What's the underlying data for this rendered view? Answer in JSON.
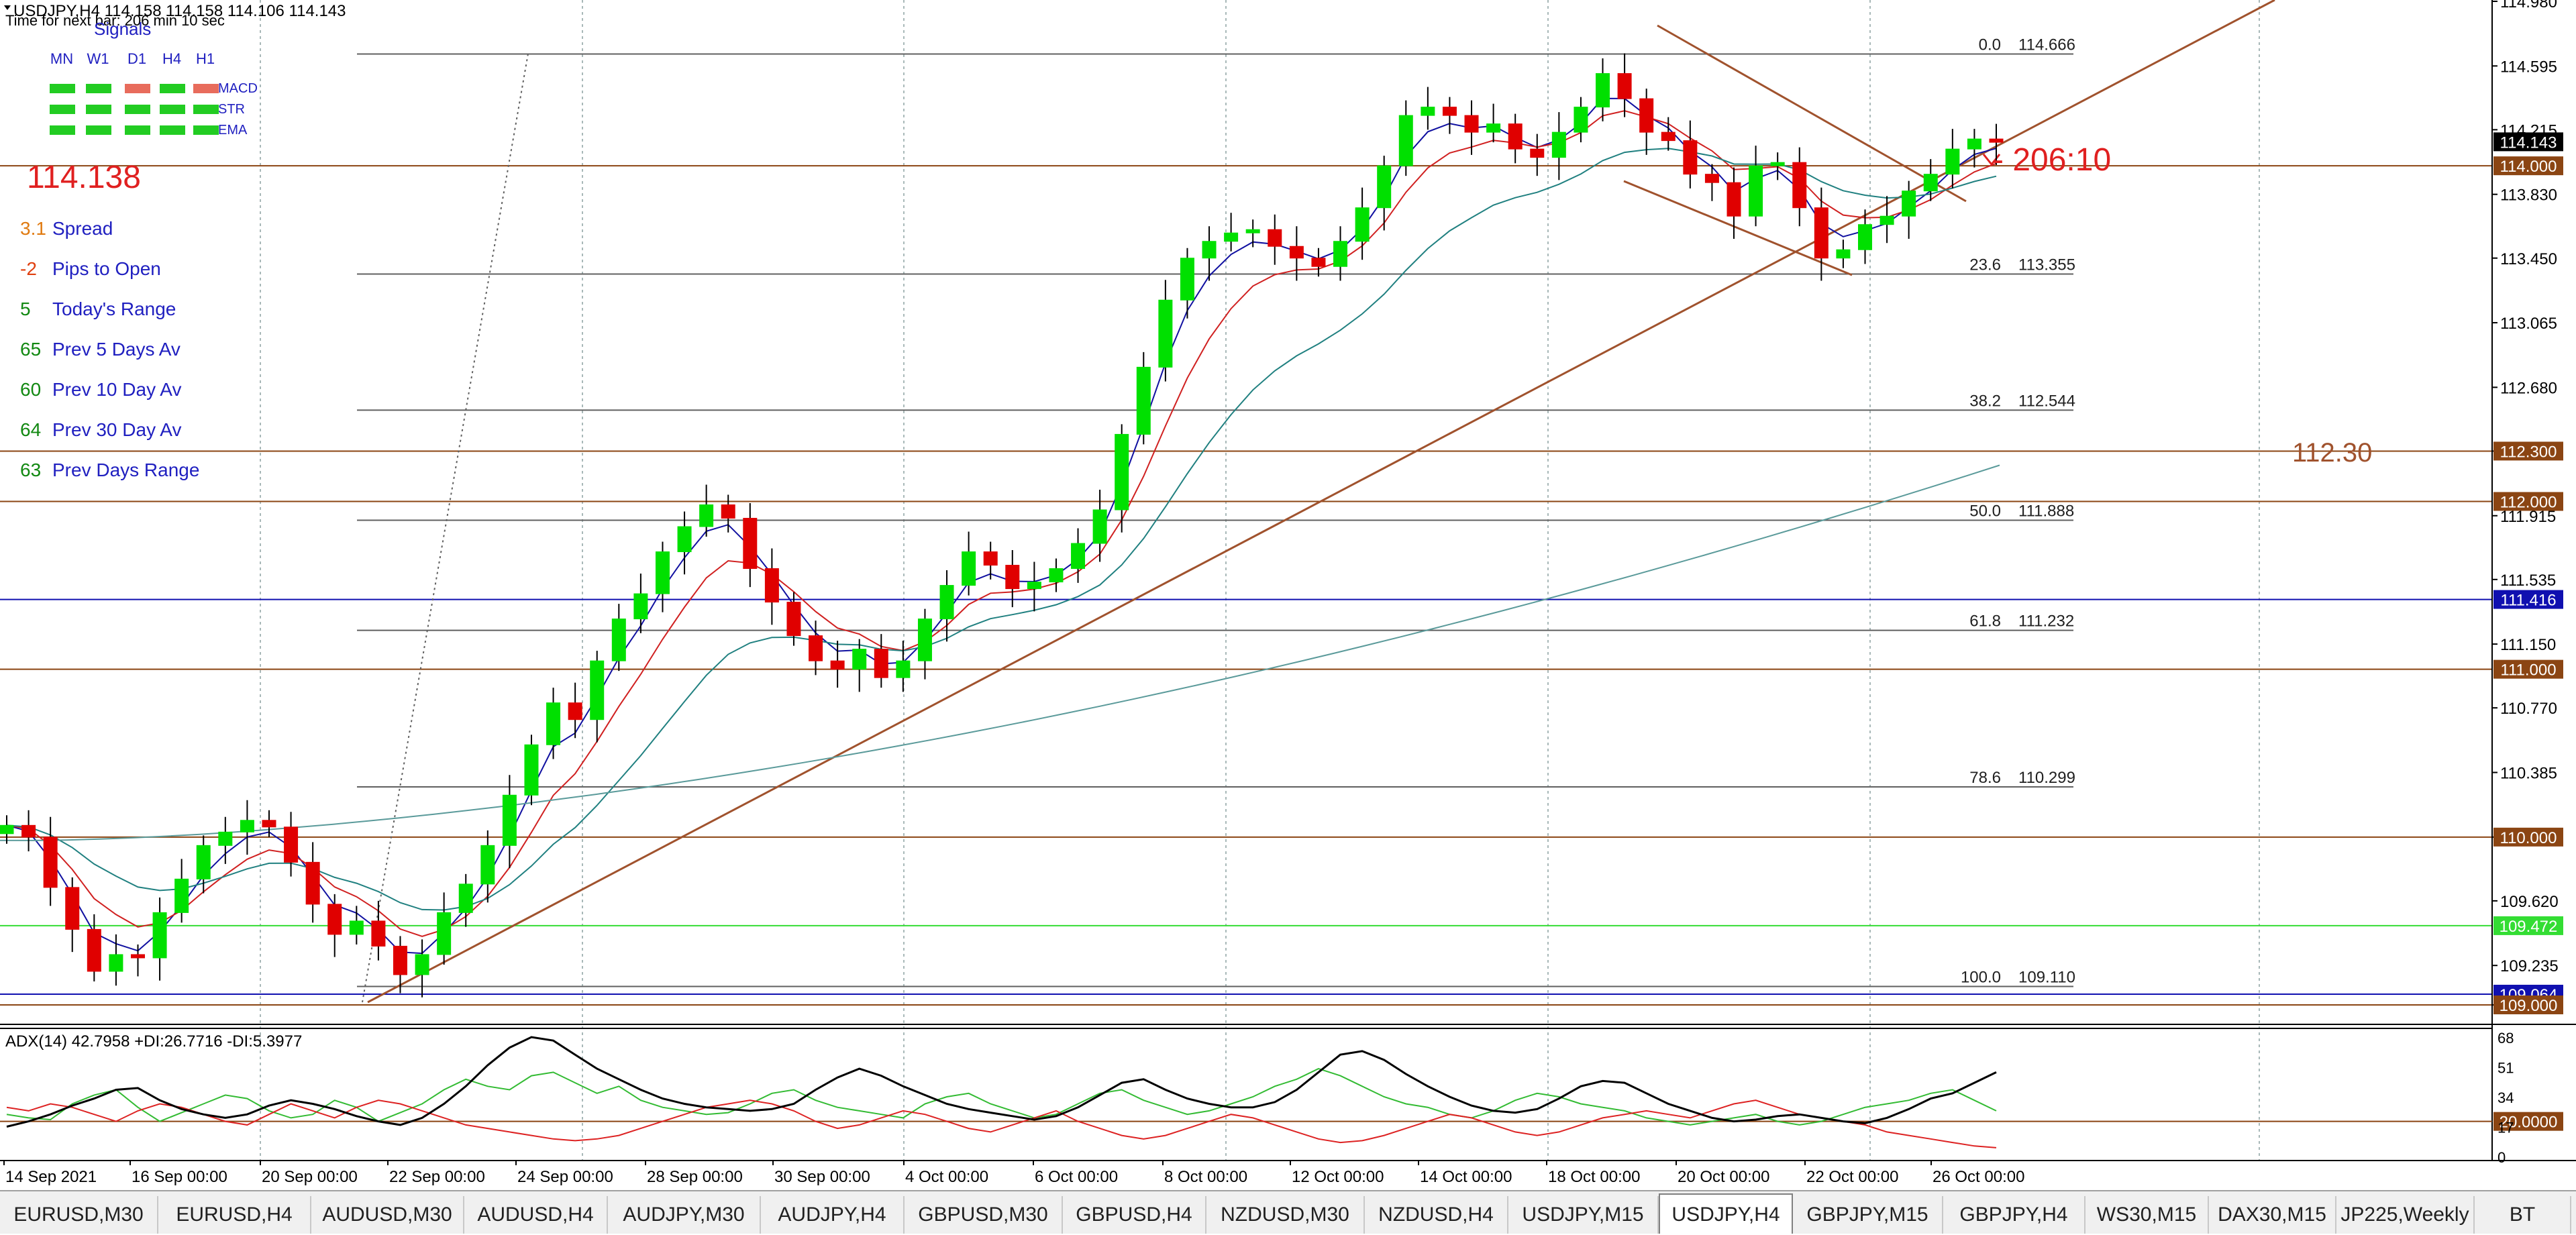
{
  "header": {
    "symbol_line": "USDJPY,H4  114.158 114.158 114.106 114.143",
    "timer": "Time for next bar: 206 min 10 sec"
  },
  "signals": {
    "title": "Signals",
    "timeframes": [
      "MN",
      "W1",
      "D1",
      "H4",
      "H1"
    ],
    "rows": [
      {
        "label": "MACD",
        "colors": [
          "#22cc22",
          "#22cc22",
          "#e86c5c",
          "#22cc22",
          "#e86c5c"
        ]
      },
      {
        "label": "STR",
        "colors": [
          "#22cc22",
          "#22cc22",
          "#22cc22",
          "#22cc22",
          "#22cc22"
        ]
      },
      {
        "label": "EMA",
        "colors": [
          "#22cc22",
          "#22cc22",
          "#22cc22",
          "#22cc22",
          "#22cc22"
        ]
      }
    ]
  },
  "big_price": "114.138",
  "stats": [
    {
      "value": "3.1",
      "label": "Spread",
      "value_color": "#e07a10"
    },
    {
      "value": "-2",
      "label": "Pips to Open",
      "value_color": "#e04010"
    },
    {
      "value": "5",
      "label": "Today's Range",
      "value_color": "#118811"
    },
    {
      "value": "65",
      "label": "Prev 5 Days Av",
      "value_color": "#118811"
    },
    {
      "value": "60",
      "label": "Prev 10 Day Av",
      "value_color": "#118811"
    },
    {
      "value": "64",
      "label": "Prev 30 Day Av",
      "value_color": "#118811"
    },
    {
      "value": "63",
      "label": "Prev Days Range",
      "value_color": "#118811"
    }
  ],
  "countdown_label": "- 206:10",
  "level_label": "112.30",
  "fib_levels": [
    {
      "ratio": "0.0",
      "price": 114.666,
      "price_text": "114.666"
    },
    {
      "ratio": "23.6",
      "price": 113.355,
      "price_text": "113.355"
    },
    {
      "ratio": "38.2",
      "price": 112.544,
      "price_text": "112.544"
    },
    {
      "ratio": "50.0",
      "price": 111.888,
      "price_text": "111.888"
    },
    {
      "ratio": "61.8",
      "price": 111.232,
      "price_text": "111.232"
    },
    {
      "ratio": "78.6",
      "price": 110.299,
      "price_text": "110.299"
    },
    {
      "ratio": "100.0",
      "price": 109.11,
      "price_text": "109.110"
    }
  ],
  "horizontal_lines": [
    {
      "price": 114.0,
      "label": "114.000",
      "color": "#8b4513"
    },
    {
      "price": 112.3,
      "label": "112.300",
      "color": "#8b4513"
    },
    {
      "price": 112.0,
      "label": "112.000",
      "color": "#8b4513"
    },
    {
      "price": 111.416,
      "label": "111.416",
      "color": "#1010b0"
    },
    {
      "price": 111.0,
      "label": "111.000",
      "color": "#8b4513"
    },
    {
      "price": 110.0,
      "label": "110.000",
      "color": "#8b4513"
    },
    {
      "price": 109.472,
      "label": "109.472",
      "color": "#33dd33"
    },
    {
      "price": 109.064,
      "label": "109.064",
      "color": "#1010b0"
    },
    {
      "price": 109.0,
      "label": "109.000",
      "color": "#8b4513"
    }
  ],
  "current_price_label": "114.143",
  "price_axis_ticks": [
    "114.980",
    "114.595",
    "114.215",
    "113.830",
    "113.450",
    "113.065",
    "112.680",
    "112.300",
    "111.915",
    "111.535",
    "111.150",
    "110.770",
    "110.385",
    "110.000",
    "109.620",
    "109.235",
    "109.000"
  ],
  "adx": {
    "label": "ADX(14) 42.7958 +DI:26.7716 -DI:5.3977",
    "axis_ticks": [
      "68",
      "51",
      "34",
      "17",
      "0"
    ],
    "level_label": "20.0000",
    "adx_values": [
      17,
      20,
      24,
      29,
      33,
      38,
      39,
      32,
      27,
      24,
      22,
      24,
      29,
      32,
      30,
      27,
      23,
      20,
      18,
      22,
      30,
      40,
      52,
      62,
      68,
      66,
      58,
      50,
      44,
      38,
      33,
      30,
      28,
      27,
      26,
      27,
      30,
      38,
      45,
      50,
      46,
      40,
      35,
      30,
      27,
      25,
      23,
      21,
      23,
      28,
      35,
      42,
      44,
      38,
      33,
      30,
      28,
      28,
      31,
      38,
      48,
      58,
      60,
      55,
      47,
      40,
      34,
      29,
      26,
      25,
      27,
      33,
      40,
      43,
      42,
      36,
      30,
      26,
      22,
      20,
      21,
      23,
      24,
      22,
      20,
      19,
      22,
      27,
      33,
      36,
      42,
      48
    ],
    "plus_di": [
      24,
      22,
      21,
      30,
      35,
      38,
      28,
      20,
      25,
      30,
      35,
      33,
      26,
      22,
      24,
      32,
      28,
      20,
      25,
      30,
      38,
      44,
      40,
      38,
      46,
      48,
      42,
      36,
      40,
      32,
      28,
      26,
      24,
      25,
      30,
      36,
      38,
      32,
      28,
      26,
      24,
      22,
      30,
      34,
      36,
      30,
      26,
      22,
      24,
      30,
      36,
      38,
      32,
      28,
      24,
      26,
      30,
      34,
      40,
      44,
      50,
      46,
      40,
      34,
      30,
      28,
      24,
      22,
      26,
      32,
      36,
      34,
      30,
      28,
      26,
      22,
      20,
      18,
      20,
      22,
      24,
      20,
      18,
      20,
      24,
      28,
      30,
      32,
      36,
      38,
      32,
      26
    ],
    "minus_di": [
      28,
      26,
      30,
      28,
      24,
      20,
      26,
      30,
      28,
      24,
      20,
      18,
      24,
      30,
      26,
      22,
      28,
      32,
      30,
      26,
      22,
      18,
      16,
      14,
      12,
      10,
      9,
      10,
      12,
      16,
      20,
      24,
      28,
      30,
      32,
      30,
      26,
      20,
      16,
      18,
      22,
      26,
      24,
      20,
      16,
      14,
      18,
      22,
      26,
      20,
      16,
      12,
      10,
      12,
      16,
      20,
      24,
      22,
      18,
      14,
      10,
      8,
      9,
      12,
      16,
      20,
      24,
      22,
      18,
      14,
      12,
      14,
      18,
      22,
      24,
      26,
      24,
      22,
      26,
      30,
      32,
      28,
      24,
      22,
      20,
      18,
      14,
      12,
      10,
      8,
      6,
      5
    ]
  },
  "time_axis": [
    "14 Sep 2021",
    "16 Sep 00:00",
    "20 Sep 00:00",
    "22 Sep 00:00",
    "24 Sep 00:00",
    "28 Sep 00:00",
    "30 Sep 00:00",
    "4 Oct 00:00",
    "6 Oct 00:00",
    "8 Oct 00:00",
    "12 Oct 00:00",
    "14 Oct 00:00",
    "18 Oct 00:00",
    "20 Oct 00:00",
    "22 Oct 00:00",
    "26 Oct 00:00"
  ],
  "tabs": [
    {
      "label": "EURUSD,M30",
      "active": false
    },
    {
      "label": "EURUSD,H4",
      "active": false
    },
    {
      "label": "AUDUSD,M30",
      "active": false
    },
    {
      "label": "AUDUSD,H4",
      "active": false
    },
    {
      "label": "AUDJPY,M30",
      "active": false
    },
    {
      "label": "AUDJPY,H4",
      "active": false
    },
    {
      "label": "GBPUSD,M30",
      "active": false
    },
    {
      "label": "GBPUSD,H4",
      "active": false
    },
    {
      "label": "NZDUSD,M30",
      "active": false
    },
    {
      "label": "NZDUSD,H4",
      "active": false
    },
    {
      "label": "USDJPY,M15",
      "active": false
    },
    {
      "label": "USDJPY,H4",
      "active": true
    },
    {
      "label": "GBPJPY,M15",
      "active": false
    },
    {
      "label": "GBPJPY,H4",
      "active": false
    },
    {
      "label": "WS30,M15",
      "active": false
    },
    {
      "label": "DAX30,M15",
      "active": false
    },
    {
      "label": "JP225,Weekly",
      "active": false
    },
    {
      "label": "BT",
      "active": false
    }
  ],
  "colors": {
    "bull": "#00e000",
    "bear": "#e00000",
    "ma_fast": "#1010a0",
    "ma_mid": "#d02020",
    "ma_slow": "#208080",
    "ma_long": "#5a9a9a",
    "trend": "#a0522d",
    "adx_line": "#000000",
    "plus_di": "#33bb33",
    "minus_di": "#dd2222"
  },
  "chart_data": {
    "type": "candlestick",
    "symbol": "USDJPY",
    "timeframe": "H4",
    "ylim": [
      108.9,
      114.98
    ],
    "closes": [
      110.07,
      110.0,
      109.7,
      109.45,
      109.2,
      109.3,
      109.28,
      109.55,
      109.75,
      109.95,
      110.03,
      110.1,
      110.06,
      109.85,
      109.6,
      109.42,
      109.5,
      109.35,
      109.18,
      109.3,
      109.55,
      109.72,
      109.95,
      110.25,
      110.55,
      110.8,
      110.7,
      111.05,
      111.3,
      111.45,
      111.7,
      111.85,
      111.98,
      111.9,
      111.6,
      111.4,
      111.2,
      111.05,
      111.0,
      111.12,
      110.95,
      111.05,
      111.3,
      111.5,
      111.7,
      111.62,
      111.48,
      111.52,
      111.6,
      111.75,
      111.95,
      112.4,
      112.8,
      113.2,
      113.45,
      113.55,
      113.6,
      113.62,
      113.52,
      113.45,
      113.4,
      113.55,
      113.75,
      114.0,
      114.3,
      114.35,
      114.3,
      114.2,
      114.25,
      114.1,
      114.05,
      114.2,
      114.35,
      114.55,
      114.4,
      114.2,
      114.15,
      113.95,
      113.9,
      113.7,
      114.0,
      114.02,
      113.75,
      113.45,
      113.5,
      113.65,
      113.7,
      113.85,
      113.95,
      114.1,
      114.16,
      114.14
    ]
  }
}
